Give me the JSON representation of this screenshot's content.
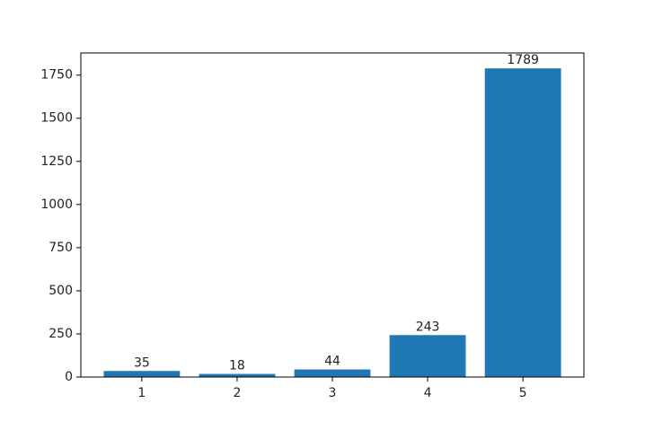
{
  "chart_data": {
    "type": "bar",
    "categories": [
      "1",
      "2",
      "3",
      "4",
      "5"
    ],
    "values": [
      35,
      18,
      44,
      243,
      1789
    ],
    "color": "#1f77b4",
    "ylim": [
      0,
      1878.45
    ],
    "yticks": [
      0,
      250,
      500,
      750,
      1000,
      1250,
      1500,
      1750
    ],
    "data_labels": true
  }
}
